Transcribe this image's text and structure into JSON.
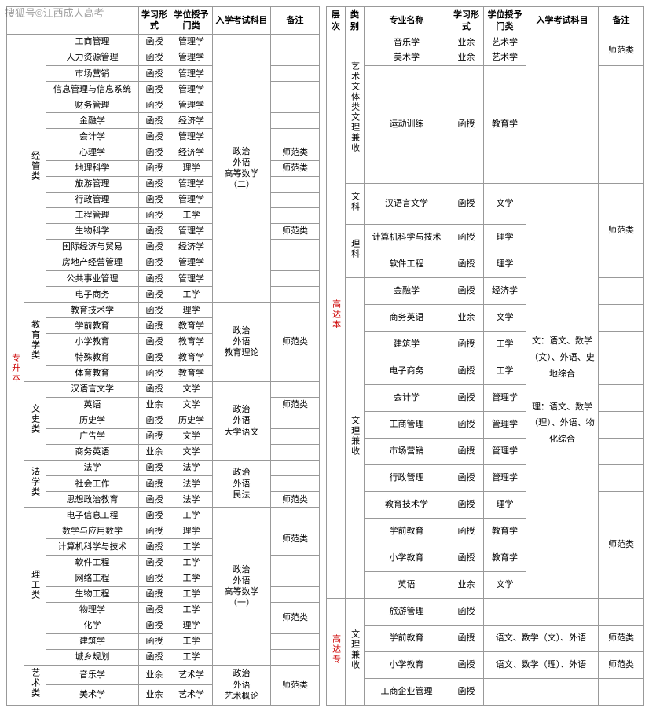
{
  "watermark": "搜狐号©江西成人高考",
  "left": {
    "headers": [
      "学习形式",
      "学位授予门类",
      "入学考试科目",
      "备注"
    ],
    "level": "专升本",
    "groups": [
      {
        "cat": "经管类",
        "exam": "政治\n外语\n高等数学（二）",
        "rows": [
          {
            "m": "工商管理",
            "f": "函授",
            "d": "管理学",
            "n": ""
          },
          {
            "m": "人力资源管理",
            "f": "函授",
            "d": "管理学",
            "n": ""
          },
          {
            "m": "市场营销",
            "f": "函授",
            "d": "管理学",
            "n": ""
          },
          {
            "m": "信息管理与信息系统",
            "f": "函授",
            "d": "管理学",
            "n": ""
          },
          {
            "m": "财务管理",
            "f": "函授",
            "d": "管理学",
            "n": ""
          },
          {
            "m": "金融学",
            "f": "函授",
            "d": "经济学",
            "n": ""
          },
          {
            "m": "会计学",
            "f": "函授",
            "d": "管理学",
            "n": ""
          },
          {
            "m": "心理学",
            "f": "函授",
            "d": "经济学",
            "n": "师范类"
          },
          {
            "m": "地理科学",
            "f": "函授",
            "d": "理学",
            "n": "师范类"
          },
          {
            "m": "旅游管理",
            "f": "函授",
            "d": "管理学",
            "n": ""
          },
          {
            "m": "行政管理",
            "f": "函授",
            "d": "管理学",
            "n": ""
          },
          {
            "m": "工程管理",
            "f": "函授",
            "d": "工学",
            "n": ""
          },
          {
            "m": "生物科学",
            "f": "函授",
            "d": "管理学",
            "n": "师范类"
          },
          {
            "m": "国际经济与贸易",
            "f": "函授",
            "d": "经济学",
            "n": ""
          },
          {
            "m": "房地产经营管理",
            "f": "函授",
            "d": "管理学",
            "n": ""
          },
          {
            "m": "公共事业管理",
            "f": "函授",
            "d": "管理学",
            "n": ""
          },
          {
            "m": "电子商务",
            "f": "函授",
            "d": "工学",
            "n": ""
          }
        ]
      },
      {
        "cat": "教育学类",
        "exam": "政治\n外语\n教育理论",
        "note": "师范类",
        "rows": [
          {
            "m": "教育技术学",
            "f": "函授",
            "d": "理学"
          },
          {
            "m": "学前教育",
            "f": "函授",
            "d": "教育学"
          },
          {
            "m": "小学教育",
            "f": "函授",
            "d": "教育学"
          },
          {
            "m": "特殊教育",
            "f": "函授",
            "d": "教育学"
          },
          {
            "m": "体育教育",
            "f": "函授",
            "d": "教育学"
          }
        ]
      },
      {
        "cat": "文史类",
        "exam": "政治\n外语\n大学语文",
        "rows": [
          {
            "m": "汉语言文学",
            "f": "函授",
            "d": "文学",
            "n": ""
          },
          {
            "m": "英语",
            "f": "业余",
            "d": "文学",
            "n": "师范类"
          },
          {
            "m": "历史学",
            "f": "函授",
            "d": "历史学",
            "n": ""
          },
          {
            "m": "广告学",
            "f": "函授",
            "d": "文学",
            "n": ""
          },
          {
            "m": "商务英语",
            "f": "业余",
            "d": "文学",
            "n": ""
          }
        ]
      },
      {
        "cat": "法学类",
        "exam": "政治\n外语\n民法",
        "rows": [
          {
            "m": "法学",
            "f": "函授",
            "d": "法学",
            "n": ""
          },
          {
            "m": "社会工作",
            "f": "函授",
            "d": "法学",
            "n": ""
          },
          {
            "m": "思想政治教育",
            "f": "函授",
            "d": "法学",
            "n": "师范类"
          }
        ]
      },
      {
        "cat": "理工类",
        "exam": "政治\n外语\n高等数学（一）",
        "rows": [
          {
            "m": "电子信息工程",
            "f": "函授",
            "d": "工学",
            "n": ""
          },
          {
            "m": "数学与应用数学",
            "f": "函授",
            "d": "理学",
            "n": "师范类",
            "nspan": 2
          },
          {
            "m": "计算机科学与技术",
            "f": "函授",
            "d": "工学"
          },
          {
            "m": "软件工程",
            "f": "函授",
            "d": "工学",
            "n": ""
          },
          {
            "m": "网络工程",
            "f": "函授",
            "d": "工学",
            "n": ""
          },
          {
            "m": "生物工程",
            "f": "函授",
            "d": "工学",
            "n": ""
          },
          {
            "m": "物理学",
            "f": "函授",
            "d": "工学",
            "n": "师范类",
            "nspan": 2
          },
          {
            "m": "化学",
            "f": "函授",
            "d": "理学"
          },
          {
            "m": "建筑学",
            "f": "函授",
            "d": "工学",
            "n": ""
          },
          {
            "m": "城乡规划",
            "f": "函授",
            "d": "工学",
            "n": ""
          }
        ]
      },
      {
        "cat": "艺术类",
        "exam": "政治\n外语\n艺术概论",
        "note": "师范类",
        "rows": [
          {
            "m": "音乐学",
            "f": "业余",
            "d": "艺术学"
          },
          {
            "m": "美术学",
            "f": "业余",
            "d": "艺术学"
          }
        ]
      }
    ]
  },
  "right": {
    "headers": [
      "层次",
      "类别",
      "专业名称",
      "学习形式",
      "学位授予门类",
      "入学考试科目",
      "备注"
    ],
    "level1": "高达本",
    "art": {
      "cat": "艺术文体类文理兼收",
      "rows": [
        {
          "m": "音乐学",
          "f": "业余",
          "d": "艺术学"
        },
        {
          "m": "美术学",
          "f": "业余",
          "d": "艺术学"
        },
        {
          "m": "运动训练",
          "f": "函授",
          "d": "教育学"
        }
      ],
      "note": "师范类"
    },
    "wen": {
      "cat": "文科",
      "m": "汉语言文学",
      "f": "函授",
      "d": "文学"
    },
    "li": {
      "cat": "理科",
      "rows": [
        {
          "m": "计算机科学与技术",
          "f": "函授",
          "d": "理学"
        },
        {
          "m": "软件工程",
          "f": "函授",
          "d": "理学"
        }
      ]
    },
    "examMain": "文：语文、数学（文）、外语、史地综合\n\n理：语文、数学（理）、外语、物化综合",
    "noteSF": "师范类",
    "mix": {
      "cat": "文理兼收",
      "rows": [
        {
          "m": "金融学",
          "f": "函授",
          "d": "经济学",
          "n": ""
        },
        {
          "m": "商务英语",
          "f": "业余",
          "d": "文学",
          "n": ""
        },
        {
          "m": "建筑学",
          "f": "函授",
          "d": "工学",
          "n": ""
        },
        {
          "m": "电子商务",
          "f": "函授",
          "d": "工学",
          "n": ""
        },
        {
          "m": "会计学",
          "f": "函授",
          "d": "管理学",
          "n": ""
        },
        {
          "m": "工商管理",
          "f": "函授",
          "d": "管理学",
          "n": ""
        },
        {
          "m": "市场营销",
          "f": "函授",
          "d": "管理学",
          "n": ""
        },
        {
          "m": "行政管理",
          "f": "函授",
          "d": "管理学",
          "n": ""
        },
        {
          "m": "教育技术学",
          "f": "函授",
          "d": "理学",
          "n": "师范类",
          "nspan": 4
        },
        {
          "m": "学前教育",
          "f": "函授",
          "d": "教育学"
        },
        {
          "m": "小学教育",
          "f": "函授",
          "d": "教育学"
        },
        {
          "m": "英语",
          "f": "业余",
          "d": "文学"
        }
      ]
    },
    "level2": "高达专",
    "gz": {
      "cat": "文理兼收",
      "rows": [
        {
          "m": "旅游管理",
          "f": "函授",
          "e": "",
          "n": ""
        },
        {
          "m": "学前教育",
          "f": "函授",
          "e": "语文、数学（文）、外语",
          "n": "师范类"
        },
        {
          "m": "小学教育",
          "f": "函授",
          "e": "语文、数学（理）、外语",
          "n": "师范类"
        },
        {
          "m": "工商企业管理",
          "f": "函授",
          "e": "",
          "n": ""
        }
      ]
    }
  }
}
